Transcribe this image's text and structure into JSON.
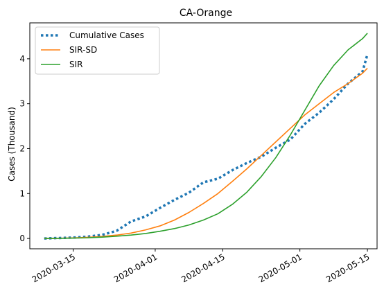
{
  "chart_data": {
    "type": "line",
    "title": "CA-Orange",
    "xlabel": "",
    "ylabel": "Cases (Thousand)",
    "x_tick_labels": [
      "2020-03-15",
      "2020-04-01",
      "2020-04-15",
      "2020-05-01",
      "2020-05-15"
    ],
    "x_tick_values": [
      "2020-03-15",
      "2020-04-01",
      "2020-04-15",
      "2020-05-01",
      "2020-05-15"
    ],
    "y_ticks": [
      0,
      1,
      2,
      3,
      4
    ],
    "xlim": [
      "2020-03-06",
      "2020-05-17"
    ],
    "ylim": [
      -0.23,
      4.8
    ],
    "grid": false,
    "legend_position": "top-left",
    "series": [
      {
        "name": "Cumulative Cases",
        "color": "#1f77b4",
        "style": "dotted",
        "x": [
          "2020-03-09",
          "2020-03-12",
          "2020-03-15",
          "2020-03-18",
          "2020-03-21",
          "2020-03-24",
          "2020-03-27",
          "2020-03-30",
          "2020-04-02",
          "2020-04-05",
          "2020-04-08",
          "2020-04-11",
          "2020-04-14",
          "2020-04-17",
          "2020-04-20",
          "2020-04-23",
          "2020-04-26",
          "2020-04-29",
          "2020-05-02",
          "2020-05-05",
          "2020-05-08",
          "2020-05-11",
          "2020-05-14",
          "2020-05-15"
        ],
        "y": [
          0.0,
          0.01,
          0.02,
          0.04,
          0.08,
          0.17,
          0.38,
          0.49,
          0.68,
          0.86,
          1.02,
          1.25,
          1.33,
          1.52,
          1.68,
          1.82,
          2.02,
          2.2,
          2.55,
          2.8,
          3.1,
          3.45,
          3.72,
          4.1
        ]
      },
      {
        "name": "SIR-SD",
        "color": "#ff7f0e",
        "style": "solid",
        "x": [
          "2020-03-09",
          "2020-03-12",
          "2020-03-15",
          "2020-03-18",
          "2020-03-21",
          "2020-03-24",
          "2020-03-27",
          "2020-03-30",
          "2020-04-02",
          "2020-04-05",
          "2020-04-08",
          "2020-04-11",
          "2020-04-14",
          "2020-04-17",
          "2020-04-20",
          "2020-04-23",
          "2020-04-26",
          "2020-04-29",
          "2020-05-02",
          "2020-05-05",
          "2020-05-08",
          "2020-05-11",
          "2020-05-14",
          "2020-05-15"
        ],
        "y": [
          0.0,
          0.005,
          0.012,
          0.025,
          0.045,
          0.075,
          0.12,
          0.19,
          0.28,
          0.41,
          0.58,
          0.78,
          1.0,
          1.27,
          1.55,
          1.85,
          2.15,
          2.45,
          2.75,
          3.0,
          3.25,
          3.45,
          3.68,
          3.79
        ]
      },
      {
        "name": "SIR",
        "color": "#2ca02c",
        "style": "solid",
        "x": [
          "2020-03-09",
          "2020-03-12",
          "2020-03-15",
          "2020-03-18",
          "2020-03-21",
          "2020-03-24",
          "2020-03-27",
          "2020-03-30",
          "2020-04-02",
          "2020-04-05",
          "2020-04-08",
          "2020-04-11",
          "2020-04-14",
          "2020-04-17",
          "2020-04-20",
          "2020-04-23",
          "2020-04-26",
          "2020-04-29",
          "2020-05-02",
          "2020-05-05",
          "2020-05-08",
          "2020-05-11",
          "2020-05-14",
          "2020-05-15"
        ],
        "y": [
          0.0,
          0.003,
          0.008,
          0.015,
          0.03,
          0.05,
          0.075,
          0.11,
          0.16,
          0.22,
          0.3,
          0.41,
          0.55,
          0.76,
          1.03,
          1.38,
          1.8,
          2.3,
          2.85,
          3.4,
          3.85,
          4.2,
          4.45,
          4.57
        ]
      }
    ]
  }
}
